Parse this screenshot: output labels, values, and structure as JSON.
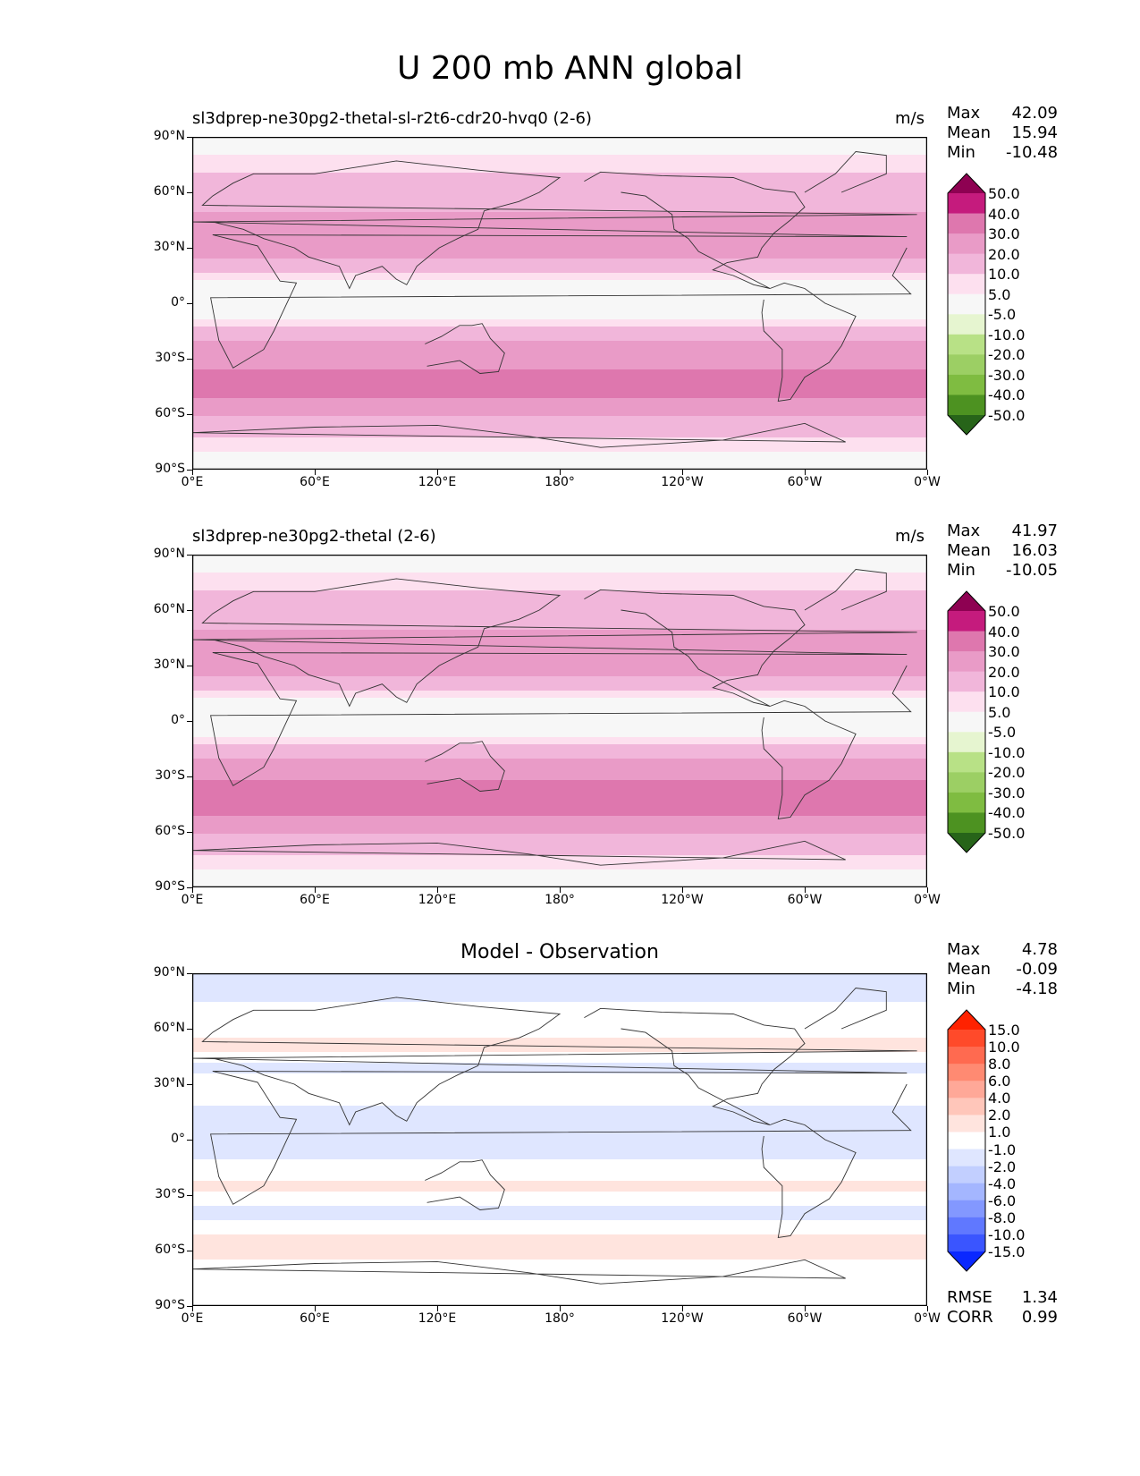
{
  "title": "U 200 mb ANN global",
  "chart_data": [
    {
      "type": "heatmap",
      "panel_title": "sl3dprep-ne30pg2-thetal-sl-r2t6-cdr20-hvq0 (2-6)",
      "units": "m/s",
      "stats": [
        {
          "label": "Max",
          "value": "42.09"
        },
        {
          "label": "Mean",
          "value": "15.94"
        },
        {
          "label": "Min",
          "value": "-10.48"
        }
      ],
      "x_ticks": [
        "0°E",
        "60°E",
        "120°E",
        "180°",
        "120°W",
        "60°W",
        "0°W"
      ],
      "y_ticks": [
        "90°N",
        "60°N",
        "30°N",
        "0°",
        "30°S",
        "60°S",
        "90°S"
      ],
      "xlim": [
        0,
        360
      ],
      "ylim": [
        -90,
        90
      ],
      "colorbar": {
        "ticks": [
          "50.0",
          "40.0",
          "30.0",
          "20.0",
          "10.0",
          "5.0",
          "-5.0",
          "-10.0",
          "-20.0",
          "-30.0",
          "-40.0",
          "-50.0"
        ],
        "colors": [
          "#8e0152",
          "#c51b7d",
          "#de77ae",
          "#e99bc7",
          "#f1b6da",
          "#fde0ef",
          "#f7f7f7",
          "#e6f5d0",
          "#b8e186",
          "#9ccf64",
          "#7fbc41",
          "#4d9221",
          "#276419"
        ]
      },
      "zonal_mean_profile": [
        {
          "lat": 85,
          "value": 3
        },
        {
          "lat": 75,
          "value": 8
        },
        {
          "lat": 65,
          "value": 13
        },
        {
          "lat": 55,
          "value": 17
        },
        {
          "lat": 45,
          "value": 22
        },
        {
          "lat": 38,
          "value": 27
        },
        {
          "lat": 30,
          "value": 30
        },
        {
          "lat": 22,
          "value": 18
        },
        {
          "lat": 14,
          "value": 6
        },
        {
          "lat": 5,
          "value": -4
        },
        {
          "lat": -5,
          "value": 2
        },
        {
          "lat": -15,
          "value": 12
        },
        {
          "lat": -25,
          "value": 25
        },
        {
          "lat": -35,
          "value": 30
        },
        {
          "lat": -45,
          "value": 33
        },
        {
          "lat": -55,
          "value": 28
        },
        {
          "lat": -65,
          "value": 15
        },
        {
          "lat": -75,
          "value": 8
        },
        {
          "lat": -85,
          "value": 3
        }
      ]
    },
    {
      "type": "heatmap",
      "panel_title": "sl3dprep-ne30pg2-thetal (2-6)",
      "units": "m/s",
      "stats": [
        {
          "label": "Max",
          "value": "41.97"
        },
        {
          "label": "Mean",
          "value": "16.03"
        },
        {
          "label": "Min",
          "value": "-10.05"
        }
      ],
      "x_ticks": [
        "0°E",
        "60°E",
        "120°E",
        "180°",
        "120°W",
        "60°W",
        "0°W"
      ],
      "y_ticks": [
        "90°N",
        "60°N",
        "30°N",
        "0°",
        "30°S",
        "60°S",
        "90°S"
      ],
      "xlim": [
        0,
        360
      ],
      "ylim": [
        -90,
        90
      ],
      "colorbar": {
        "ticks": [
          "50.0",
          "40.0",
          "30.0",
          "20.0",
          "10.0",
          "5.0",
          "-5.0",
          "-10.0",
          "-20.0",
          "-30.0",
          "-40.0",
          "-50.0"
        ],
        "colors": [
          "#8e0152",
          "#c51b7d",
          "#de77ae",
          "#e99bc7",
          "#f1b6da",
          "#fde0ef",
          "#f7f7f7",
          "#e6f5d0",
          "#b8e186",
          "#9ccf64",
          "#7fbc41",
          "#4d9221",
          "#276419"
        ]
      },
      "zonal_mean_profile": [
        {
          "lat": 85,
          "value": 3
        },
        {
          "lat": 75,
          "value": 8
        },
        {
          "lat": 65,
          "value": 13
        },
        {
          "lat": 55,
          "value": 17
        },
        {
          "lat": 45,
          "value": 22
        },
        {
          "lat": 38,
          "value": 27
        },
        {
          "lat": 30,
          "value": 30
        },
        {
          "lat": 22,
          "value": 18
        },
        {
          "lat": 14,
          "value": 6
        },
        {
          "lat": 5,
          "value": -4
        },
        {
          "lat": -5,
          "value": 2
        },
        {
          "lat": -15,
          "value": 12
        },
        {
          "lat": -25,
          "value": 26
        },
        {
          "lat": -35,
          "value": 32
        },
        {
          "lat": -45,
          "value": 33
        },
        {
          "lat": -55,
          "value": 28
        },
        {
          "lat": -65,
          "value": 15
        },
        {
          "lat": -75,
          "value": 8
        },
        {
          "lat": -85,
          "value": 3
        }
      ]
    },
    {
      "type": "heatmap",
      "panel_title": "Model - Observation",
      "units": "",
      "stats": [
        {
          "label": "Max",
          "value": "4.78"
        },
        {
          "label": "Mean",
          "value": "-0.09"
        },
        {
          "label": "Min",
          "value": "-4.18"
        }
      ],
      "extra_stats": [
        {
          "label": "RMSE",
          "value": "1.34"
        },
        {
          "label": "CORR",
          "value": "0.99"
        }
      ],
      "x_ticks": [
        "0°E",
        "60°E",
        "120°E",
        "180°",
        "120°W",
        "60°W",
        "0°W"
      ],
      "y_ticks": [
        "90°N",
        "60°N",
        "30°N",
        "0°",
        "30°S",
        "60°S",
        "90°S"
      ],
      "xlim": [
        0,
        360
      ],
      "ylim": [
        -90,
        90
      ],
      "colorbar": {
        "ticks": [
          "15.0",
          "10.0",
          "8.0",
          "6.0",
          "4.0",
          "2.0",
          "1.0",
          "-1.0",
          "-2.0",
          "-4.0",
          "-6.0",
          "-8.0",
          "-10.0",
          "-15.0"
        ],
        "colors": [
          "#ff2200",
          "#ff4a2a",
          "#ff6a50",
          "#ff8a72",
          "#ffa898",
          "#ffc6ba",
          "#ffe4de",
          "#ffffff",
          "#dfe6ff",
          "#c2cfff",
          "#a4b6ff",
          "#8398ff",
          "#6078ff",
          "#3a55ff",
          "#0a28ff"
        ]
      },
      "zonal_mean_profile": [
        {
          "lat": 80,
          "value": -1.5
        },
        {
          "lat": 60,
          "value": 0.5
        },
        {
          "lat": 50,
          "value": 1.5
        },
        {
          "lat": 40,
          "value": -1.5
        },
        {
          "lat": 25,
          "value": 0
        },
        {
          "lat": 10,
          "value": -2
        },
        {
          "lat": -10,
          "value": -1
        },
        {
          "lat": -25,
          "value": 1.5
        },
        {
          "lat": -40,
          "value": -2
        },
        {
          "lat": -55,
          "value": 2
        },
        {
          "lat": -75,
          "value": 0
        }
      ]
    }
  ]
}
